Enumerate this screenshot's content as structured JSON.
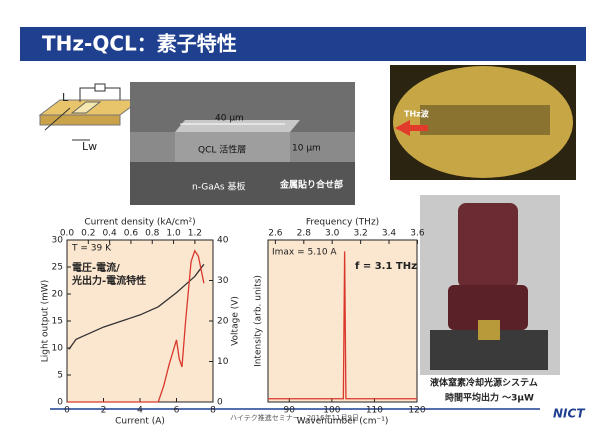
{
  "slide": {
    "title": "THz-QCL：素子特性",
    "schematic_labels": [
      "L",
      "Lw"
    ],
    "sem_labels": [
      "40 μm",
      "QCL 活性層",
      "10 μm",
      "n-GaAs 基板",
      "金属貼り合せ部"
    ],
    "photo_label": "THz波",
    "caption": [
      "液体窒素冷却光源システム",
      "時間平均出力 ～3μW"
    ],
    "footer": "ハイテク推進セミナー，2016年11月9日",
    "logo": "NICT"
  },
  "chart_data": [
    {
      "type": "line",
      "x_label": "Current (A)",
      "x2_label": "Current density (kA/cm²)",
      "y_label": "Light output (mW)",
      "y2_label": "Voltage (V)",
      "xlim": [
        0,
        8
      ],
      "xticks": [
        0,
        2,
        4,
        6,
        8
      ],
      "x2lim": [
        0,
        1.37
      ],
      "x2ticks": [
        {
          "value": 0,
          "label": "0.0"
        },
        0.2,
        0.4,
        0.6,
        0.8,
        {
          "value": 1,
          "label": "1.0"
        },
        1.2
      ],
      "ylim": [
        0,
        30
      ],
      "yticks": [
        0,
        5,
        10,
        15,
        20,
        25,
        30
      ],
      "y2lim": [
        0,
        40
      ],
      "y2ticks": [
        0,
        10,
        20,
        30,
        40
      ],
      "annotations": [
        "T = 39 K",
        "電圧-電流/",
        "光出力-電流特性"
      ],
      "series": [
        {
          "color": "#333333",
          "axis": "y2",
          "x": [
            0.1,
            0.5,
            1,
            2,
            3,
            4,
            5,
            6,
            6.5,
            7,
            7.5
          ],
          "values": [
            13,
            15.5,
            16.5,
            18.5,
            20,
            21.5,
            23.5,
            27,
            29,
            31,
            34
          ]
        },
        {
          "color": "#d9372b",
          "x": [
            0,
            5,
            5.3,
            5.6,
            6.0,
            6.15,
            6.3,
            6.5,
            6.8,
            7.0,
            7.2,
            7.5
          ],
          "values": [
            0,
            0,
            3,
            7,
            11.5,
            8,
            6.5,
            15,
            26,
            28,
            27,
            22
          ]
        }
      ]
    },
    {
      "type": "line",
      "x_label": "Wavenumber (cm⁻¹)",
      "x2_label": "Frequency (THz)",
      "y_label": "Intensity (arb. units)",
      "xlim": [
        85,
        120
      ],
      "xticks": [
        90,
        100,
        110,
        120
      ],
      "x2lim": [
        2.548,
        3.597
      ],
      "x2ticks": [
        2.6,
        2.8,
        {
          "value": 3,
          "label": "3.0"
        },
        3.2,
        3.4,
        3.6
      ],
      "ylim": [
        0,
        1
      ],
      "annotations": [
        "Imax = 5.10 A",
        "f = 3.1 THz"
      ],
      "series": [
        {
          "color": "#d9372b",
          "x": [
            85,
            102.7,
            103,
            103.3,
            120
          ],
          "values": [
            0.02,
            0.02,
            0.93,
            0.02,
            0.02
          ]
        }
      ]
    }
  ]
}
